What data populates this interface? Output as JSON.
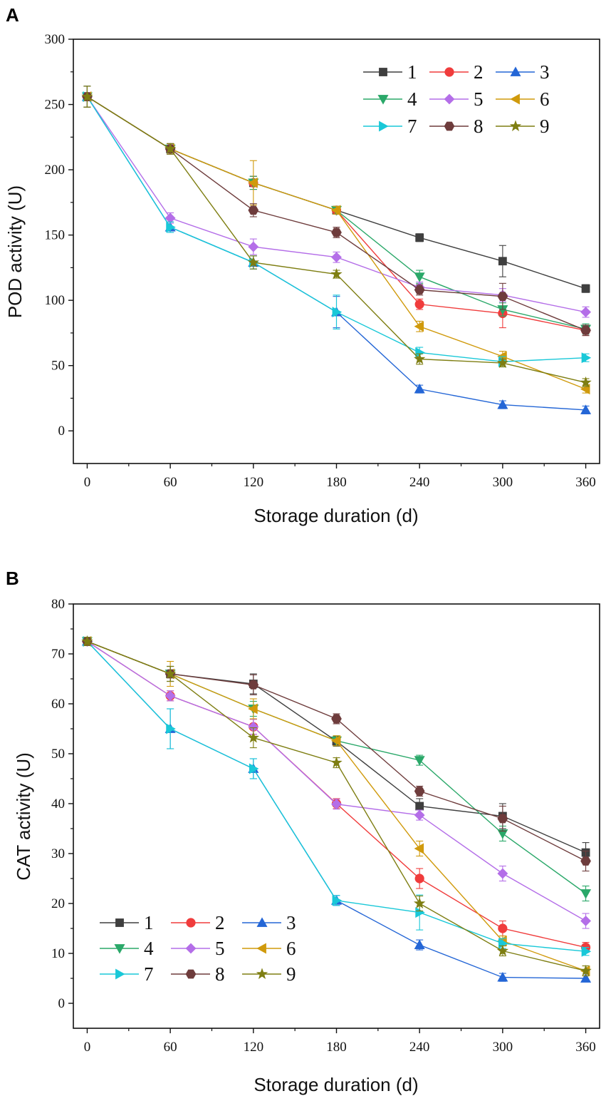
{
  "colors": {
    "1": "#3f3f3f",
    "2": "#f03c3c",
    "3": "#2466d6",
    "4": "#2aa869",
    "5": "#b46ee8",
    "6": "#d09a0c",
    "7": "#19c8d8",
    "8": "#6e3c3c",
    "9": "#7e7e12"
  },
  "markers": {
    "1": "square",
    "2": "circle",
    "3": "triangle-up",
    "4": "triangle-down",
    "5": "diamond",
    "6": "triangle-left",
    "7": "triangle-right",
    "8": "hexagon",
    "9": "star"
  },
  "chart_data": [
    {
      "panel": "A",
      "type": "line",
      "xlabel": "Storage duration (d)",
      "ylabel": "POD activity (U)",
      "x": [
        0,
        60,
        120,
        180,
        240,
        300,
        360
      ],
      "xticks": [
        "0",
        "60",
        "120",
        "180",
        "240",
        "300",
        "360"
      ],
      "yticks": [
        "0",
        "50",
        "100",
        "150",
        "200",
        "250",
        "300"
      ],
      "xlim": [
        -10,
        370
      ],
      "ylim": [
        -25,
        300
      ],
      "legend_position": "top-right",
      "series": [
        {
          "name": "1",
          "values": [
            256,
            216,
            190,
            169,
            148,
            130,
            109
          ],
          "err": [
            8,
            4,
            5,
            3,
            3,
            12,
            3
          ]
        },
        {
          "name": "2",
          "values": [
            256,
            216,
            190,
            169,
            97,
            90,
            77
          ],
          "err": [
            8,
            4,
            5,
            3,
            4,
            11,
            4
          ]
        },
        {
          "name": "3",
          "values": [
            256,
            156,
            129,
            91,
            32,
            20,
            16
          ],
          "err": [
            8,
            4,
            5,
            12,
            3,
            3,
            3
          ]
        },
        {
          "name": "4",
          "values": [
            256,
            216,
            190,
            169,
            118,
            93,
            78
          ],
          "err": [
            8,
            4,
            5,
            3,
            5,
            5,
            4
          ]
        },
        {
          "name": "5",
          "values": [
            256,
            163,
            141,
            133,
            110,
            104,
            91
          ],
          "err": [
            8,
            4,
            6,
            4,
            4,
            5,
            4
          ]
        },
        {
          "name": "6",
          "values": [
            256,
            216,
            190,
            169,
            80,
            57,
            32
          ],
          "err": [
            8,
            4,
            17,
            3,
            4,
            4,
            3
          ]
        },
        {
          "name": "7",
          "values": [
            256,
            156,
            129,
            91,
            60,
            53,
            56
          ],
          "err": [
            8,
            4,
            5,
            13,
            4,
            4,
            3
          ]
        },
        {
          "name": "8",
          "values": [
            256,
            216,
            169,
            152,
            108,
            103,
            77
          ],
          "err": [
            8,
            4,
            5,
            4,
            4,
            10,
            4
          ]
        },
        {
          "name": "9",
          "values": [
            256,
            216,
            129,
            120,
            55,
            52,
            37
          ],
          "err": [
            8,
            4,
            5,
            3,
            4,
            3,
            3
          ]
        }
      ]
    },
    {
      "panel": "B",
      "type": "line",
      "xlabel": "Storage duration (d)",
      "ylabel": "CAT activity (U)",
      "x": [
        0,
        60,
        120,
        180,
        240,
        300,
        360
      ],
      "xticks": [
        "0",
        "60",
        "120",
        "180",
        "240",
        "300",
        "360"
      ],
      "yticks": [
        "0",
        "10",
        "20",
        "30",
        "40",
        "50",
        "60",
        "70",
        "80"
      ],
      "xlim": [
        -10,
        370
      ],
      "ylim": [
        -5,
        80
      ],
      "legend_position": "bottom-left",
      "series": [
        {
          "name": "1",
          "values": [
            72.5,
            66,
            64,
            52.5,
            39.5,
            37.5,
            30.2
          ],
          "err": [
            0.8,
            1.5,
            2.0,
            1.0,
            1.5,
            2.5,
            2.0
          ]
        },
        {
          "name": "2",
          "values": [
            72.5,
            61.6,
            55.4,
            40,
            25,
            15,
            11.2
          ],
          "err": [
            0.8,
            1.0,
            1.5,
            1.0,
            2.0,
            1.5,
            1.0
          ]
        },
        {
          "name": "3",
          "values": [
            72.5,
            55,
            47,
            20.6,
            11.7,
            5.2,
            5.0
          ],
          "err": [
            0.8,
            4.0,
            2.0,
            1.0,
            1.0,
            0.8,
            0.5
          ]
        },
        {
          "name": "4",
          "values": [
            72.5,
            66,
            59,
            52.6,
            48.7,
            34,
            22
          ],
          "err": [
            0.8,
            1.5,
            1.5,
            1.0,
            1.0,
            1.5,
            1.5
          ]
        },
        {
          "name": "5",
          "values": [
            72.5,
            61.6,
            55.4,
            39.9,
            37.7,
            26,
            16.5
          ],
          "err": [
            0.8,
            1.0,
            1.5,
            1.0,
            1.0,
            1.5,
            1.5
          ]
        },
        {
          "name": "6",
          "values": [
            72.5,
            66,
            59,
            52.6,
            31,
            12.5,
            6.5
          ],
          "err": [
            0.8,
            2.5,
            2.0,
            1.0,
            1.5,
            1.0,
            1.0
          ]
        },
        {
          "name": "7",
          "values": [
            72.5,
            55,
            47,
            20.6,
            18.2,
            12,
            10.4
          ],
          "err": [
            0.8,
            4.0,
            2.0,
            1.0,
            3.5,
            1.0,
            0.8
          ]
        },
        {
          "name": "8",
          "values": [
            72.5,
            66,
            63.8,
            57,
            42.5,
            37,
            28.5
          ],
          "err": [
            0.8,
            1.5,
            2.0,
            1.0,
            1.0,
            2.5,
            2.0
          ]
        },
        {
          "name": "9",
          "values": [
            72.5,
            66,
            53.2,
            48.2,
            20,
            10.5,
            6.5
          ],
          "err": [
            0.8,
            1.5,
            2.0,
            1.0,
            1.5,
            1.0,
            1.0
          ]
        }
      ]
    }
  ],
  "panels": {
    "A": {
      "tag": "A",
      "xlabel": "Storage duration (d)",
      "ylabel": "POD activity (U)"
    },
    "B": {
      "tag": "B",
      "xlabel": "Storage duration (d)",
      "ylabel": "CAT activity (U)"
    }
  }
}
